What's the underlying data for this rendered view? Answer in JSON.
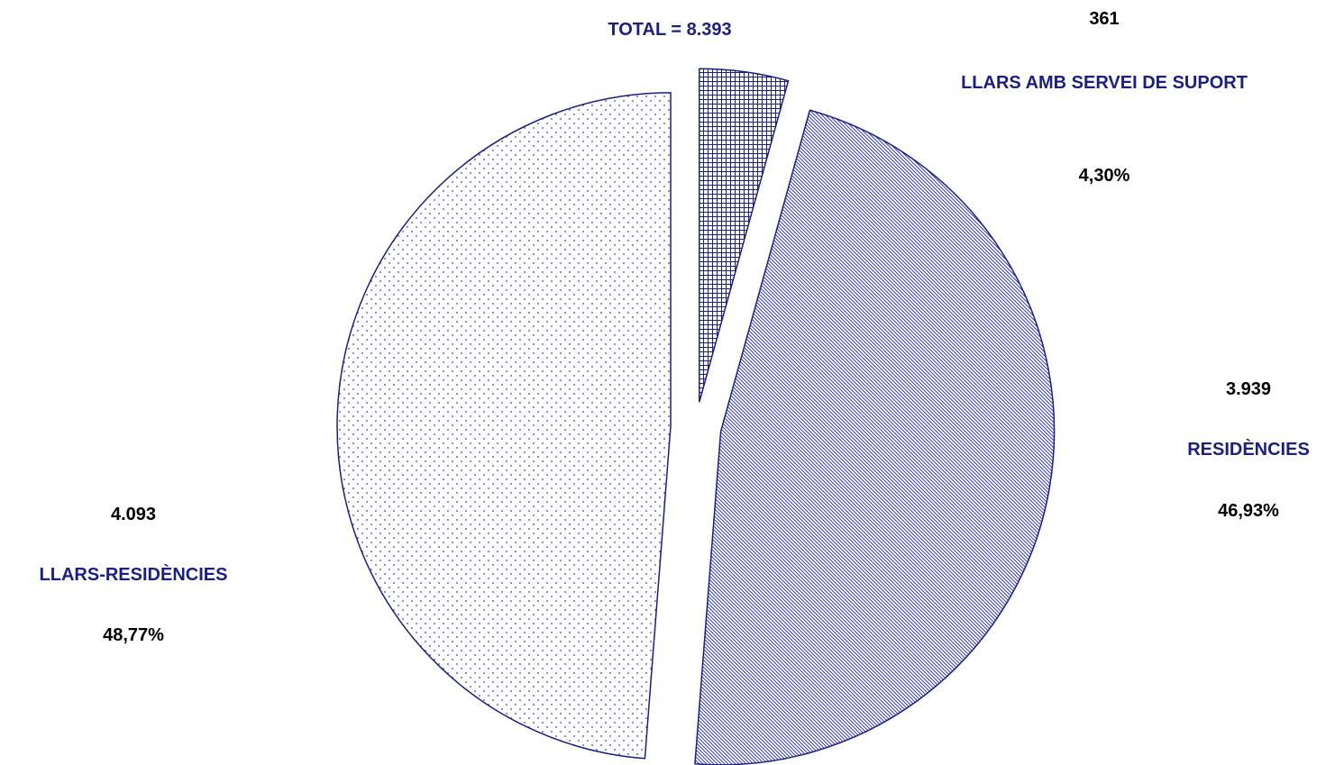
{
  "chart_data": {
    "type": "pie",
    "title": "TOTAL = 8.393",
    "slices": [
      {
        "label": "LLARS AMB SERVEI DE SUPORT",
        "value": 361,
        "value_text": "361",
        "percent_text": "4,30%",
        "percent": 4.3,
        "pattern": "grid"
      },
      {
        "label": "RESIDÈNCIES",
        "value": 3939,
        "value_text": "3.939",
        "percent_text": "46,93%",
        "percent": 46.93,
        "pattern": "diagonal"
      },
      {
        "label": "LLARS-RESIDÈNCIES",
        "value": 4093,
        "value_text": "4.093",
        "percent_text": "48,77%",
        "percent": 48.77,
        "pattern": "dots"
      }
    ],
    "start_angle_deg": 0,
    "direction": "clockwise",
    "exploded": true
  },
  "colors": {
    "outline": "#1b1f82",
    "pattern": "#3a3fa8",
    "label_text": "#1b1f82",
    "value_text": "#000000",
    "background": "#ffffff"
  }
}
